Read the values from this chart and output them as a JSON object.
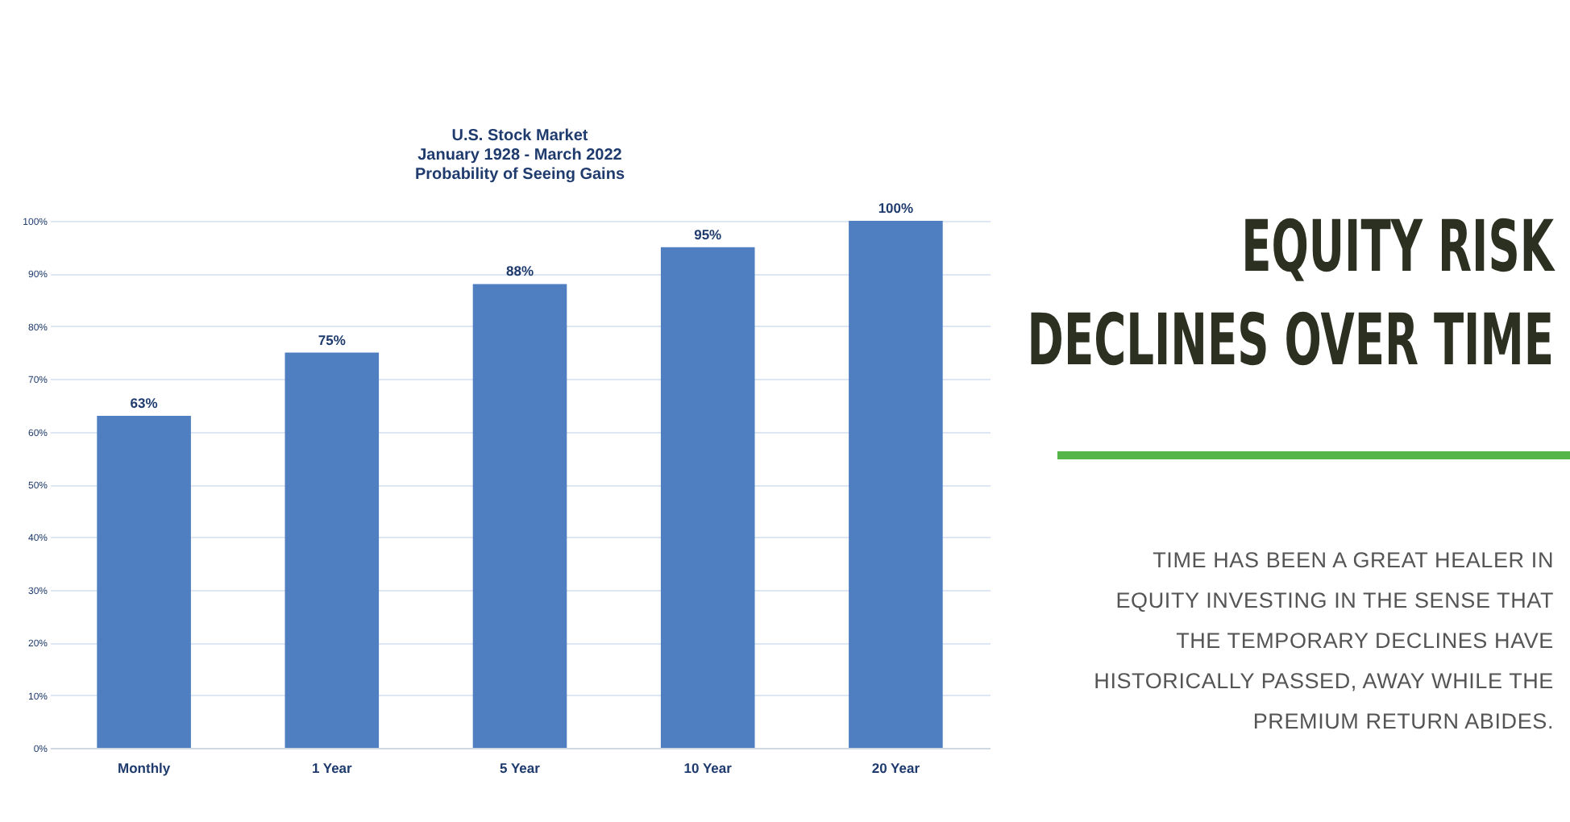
{
  "chart_data": [
    {
      "type": "bar",
      "title": "U.S. Stock Market",
      "subtitle": "January 1928 - March 2022\nProbability of Seeing Gains",
      "categories": [
        "Monthly",
        "1 Year",
        "5 Year",
        "10 Year",
        "20 Year"
      ],
      "values": [
        63,
        75,
        88,
        95,
        100
      ],
      "value_labels": [
        "63%",
        "75%",
        "88%",
        "95%",
        "100%"
      ],
      "color": "#4f7fc0",
      "ylim": [
        0,
        100
      ],
      "yticks": [
        {
          "value": 0,
          "label": "0%"
        },
        {
          "value": 10,
          "label": "10%"
        },
        {
          "value": 20,
          "label": "20%"
        },
        {
          "value": 30,
          "label": "30%"
        },
        {
          "value": 40,
          "label": "40%"
        },
        {
          "value": 50,
          "label": "50%"
        },
        {
          "value": 60,
          "label": "60%"
        },
        {
          "value": 70,
          "label": "70%"
        },
        {
          "value": 80,
          "label": "80%"
        },
        {
          "value": 90,
          "label": "90%"
        },
        {
          "value": 100,
          "label": "100%"
        }
      ],
      "grid": "y"
    },
    {
      "type": "other",
      "title": "EQUITY RISK DECLINES OVER TIME",
      "annotations": [
        "TIME HAS BEEN A GREAT HEALER IN EQUITY INVESTING IN THE SENSE THAT THE TEMPORARY DECLINES HAVE HISTORICALLY PASSED, AWAY WHILE THE PREMIUM RETURN ABIDES."
      ]
    }
  ]
}
